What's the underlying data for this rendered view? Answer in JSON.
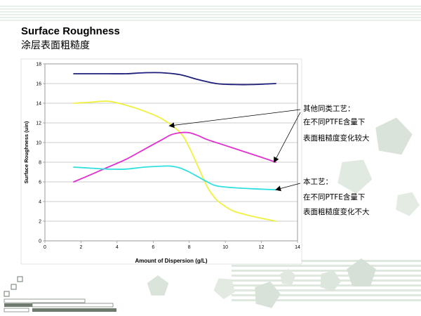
{
  "slide": {
    "title_en": "Surface Roughness",
    "title_zh": "涂层表面粗糙度"
  },
  "annotations": {
    "others": [
      "其他同类工艺：",
      "在不同PTFE含量下",
      "表面粗糙度变化较大"
    ],
    "ours": [
      "本工艺：",
      "在不同PTFE含量下",
      "表面粗糙度变化不大"
    ]
  },
  "chart_data": {
    "type": "line",
    "xlabel": "Amount of Dispersion (g/L)",
    "ylabel": "Surface Roughness (uin)",
    "xlim": [
      0,
      14
    ],
    "ylim": [
      0,
      18
    ],
    "x_ticks": [
      0,
      2,
      4,
      6,
      8,
      10,
      12,
      14
    ],
    "y_ticks": [
      0,
      2,
      4,
      6,
      8,
      10,
      12,
      14,
      16,
      18
    ],
    "grid": "horizontal",
    "series": [
      {
        "color": "#1f1f7a",
        "points": [
          [
            1.6,
            17.0
          ],
          [
            2.5,
            17.0
          ],
          [
            3.5,
            17.0
          ],
          [
            4.5,
            17.0
          ],
          [
            5.5,
            17.1
          ],
          [
            6.5,
            17.1
          ],
          [
            7.5,
            16.9
          ],
          [
            8.5,
            16.4
          ],
          [
            9.5,
            16.0
          ],
          [
            10.5,
            15.9
          ],
          [
            11.5,
            15.9
          ],
          [
            12.8,
            16.0
          ]
        ]
      },
      {
        "color": "#f0f040",
        "points": [
          [
            1.6,
            14.0
          ],
          [
            2.5,
            14.1
          ],
          [
            3.5,
            14.2
          ],
          [
            4.5,
            13.8
          ],
          [
            5.5,
            13.2
          ],
          [
            6.5,
            12.4
          ],
          [
            7.5,
            11.0
          ],
          [
            8.0,
            9.5
          ],
          [
            8.5,
            7.5
          ],
          [
            9.0,
            5.5
          ],
          [
            9.5,
            4.2
          ],
          [
            10.0,
            3.5
          ],
          [
            10.5,
            3.0
          ],
          [
            11.5,
            2.5
          ],
          [
            12.8,
            2.0
          ]
        ]
      },
      {
        "color": "#e030d0",
        "points": [
          [
            1.6,
            6.0
          ],
          [
            2.5,
            6.7
          ],
          [
            3.5,
            7.5
          ],
          [
            4.5,
            8.3
          ],
          [
            5.5,
            9.3
          ],
          [
            6.5,
            10.3
          ],
          [
            7.0,
            10.8
          ],
          [
            7.5,
            11.0
          ],
          [
            8.0,
            11.0
          ],
          [
            8.5,
            10.7
          ],
          [
            9.0,
            10.3
          ],
          [
            10.0,
            9.7
          ],
          [
            11.0,
            9.1
          ],
          [
            12.0,
            8.5
          ],
          [
            12.8,
            8.0
          ]
        ]
      },
      {
        "color": "#30e0e0",
        "points": [
          [
            1.6,
            7.5
          ],
          [
            2.5,
            7.4
          ],
          [
            3.5,
            7.3
          ],
          [
            4.5,
            7.3
          ],
          [
            5.5,
            7.5
          ],
          [
            6.5,
            7.6
          ],
          [
            7.0,
            7.6
          ],
          [
            7.5,
            7.4
          ],
          [
            8.0,
            7.0
          ],
          [
            8.5,
            6.5
          ],
          [
            9.0,
            6.0
          ],
          [
            9.5,
            5.6
          ],
          [
            10.5,
            5.4
          ],
          [
            11.5,
            5.3
          ],
          [
            12.8,
            5.2
          ]
        ]
      }
    ]
  }
}
